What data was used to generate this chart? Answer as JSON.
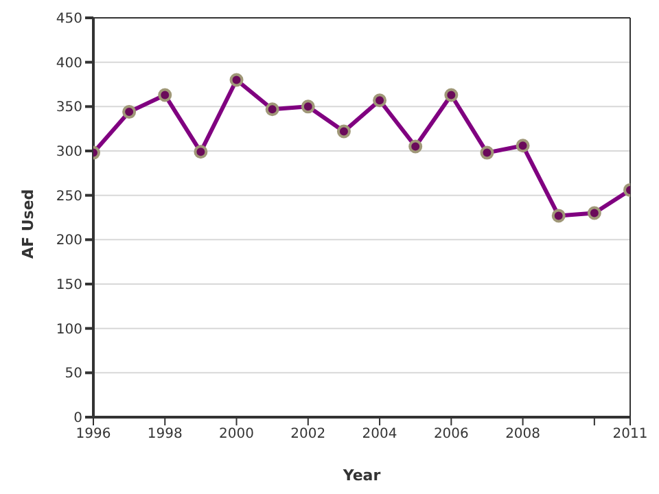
{
  "chart_data": {
    "type": "line",
    "xlabel": "Year",
    "ylabel": "AF Used",
    "x": [
      1996,
      1997,
      1998,
      1999,
      2000,
      2001,
      2002,
      2003,
      2004,
      2005,
      2006,
      2007,
      2008,
      2009,
      2010,
      2011
    ],
    "series": [
      {
        "color": "#800080",
        "values": [
          298,
          344,
          363,
          299,
          380,
          347,
          350,
          322,
          357,
          305,
          363,
          298,
          306,
          227,
          230,
          256
        ]
      }
    ],
    "xlim": [
      1996,
      2011
    ],
    "xticks": [
      1996,
      1998,
      2000,
      2002,
      2004,
      2006,
      2008,
      {
        "value": 2010,
        "label": null
      },
      2011
    ],
    "ylim": [
      0,
      450
    ],
    "yticks": [
      0,
      50,
      100,
      150,
      200,
      250,
      300,
      350,
      400,
      450
    ],
    "grid": "y",
    "legend": false,
    "marker": "circle",
    "line_style": "solid"
  }
}
